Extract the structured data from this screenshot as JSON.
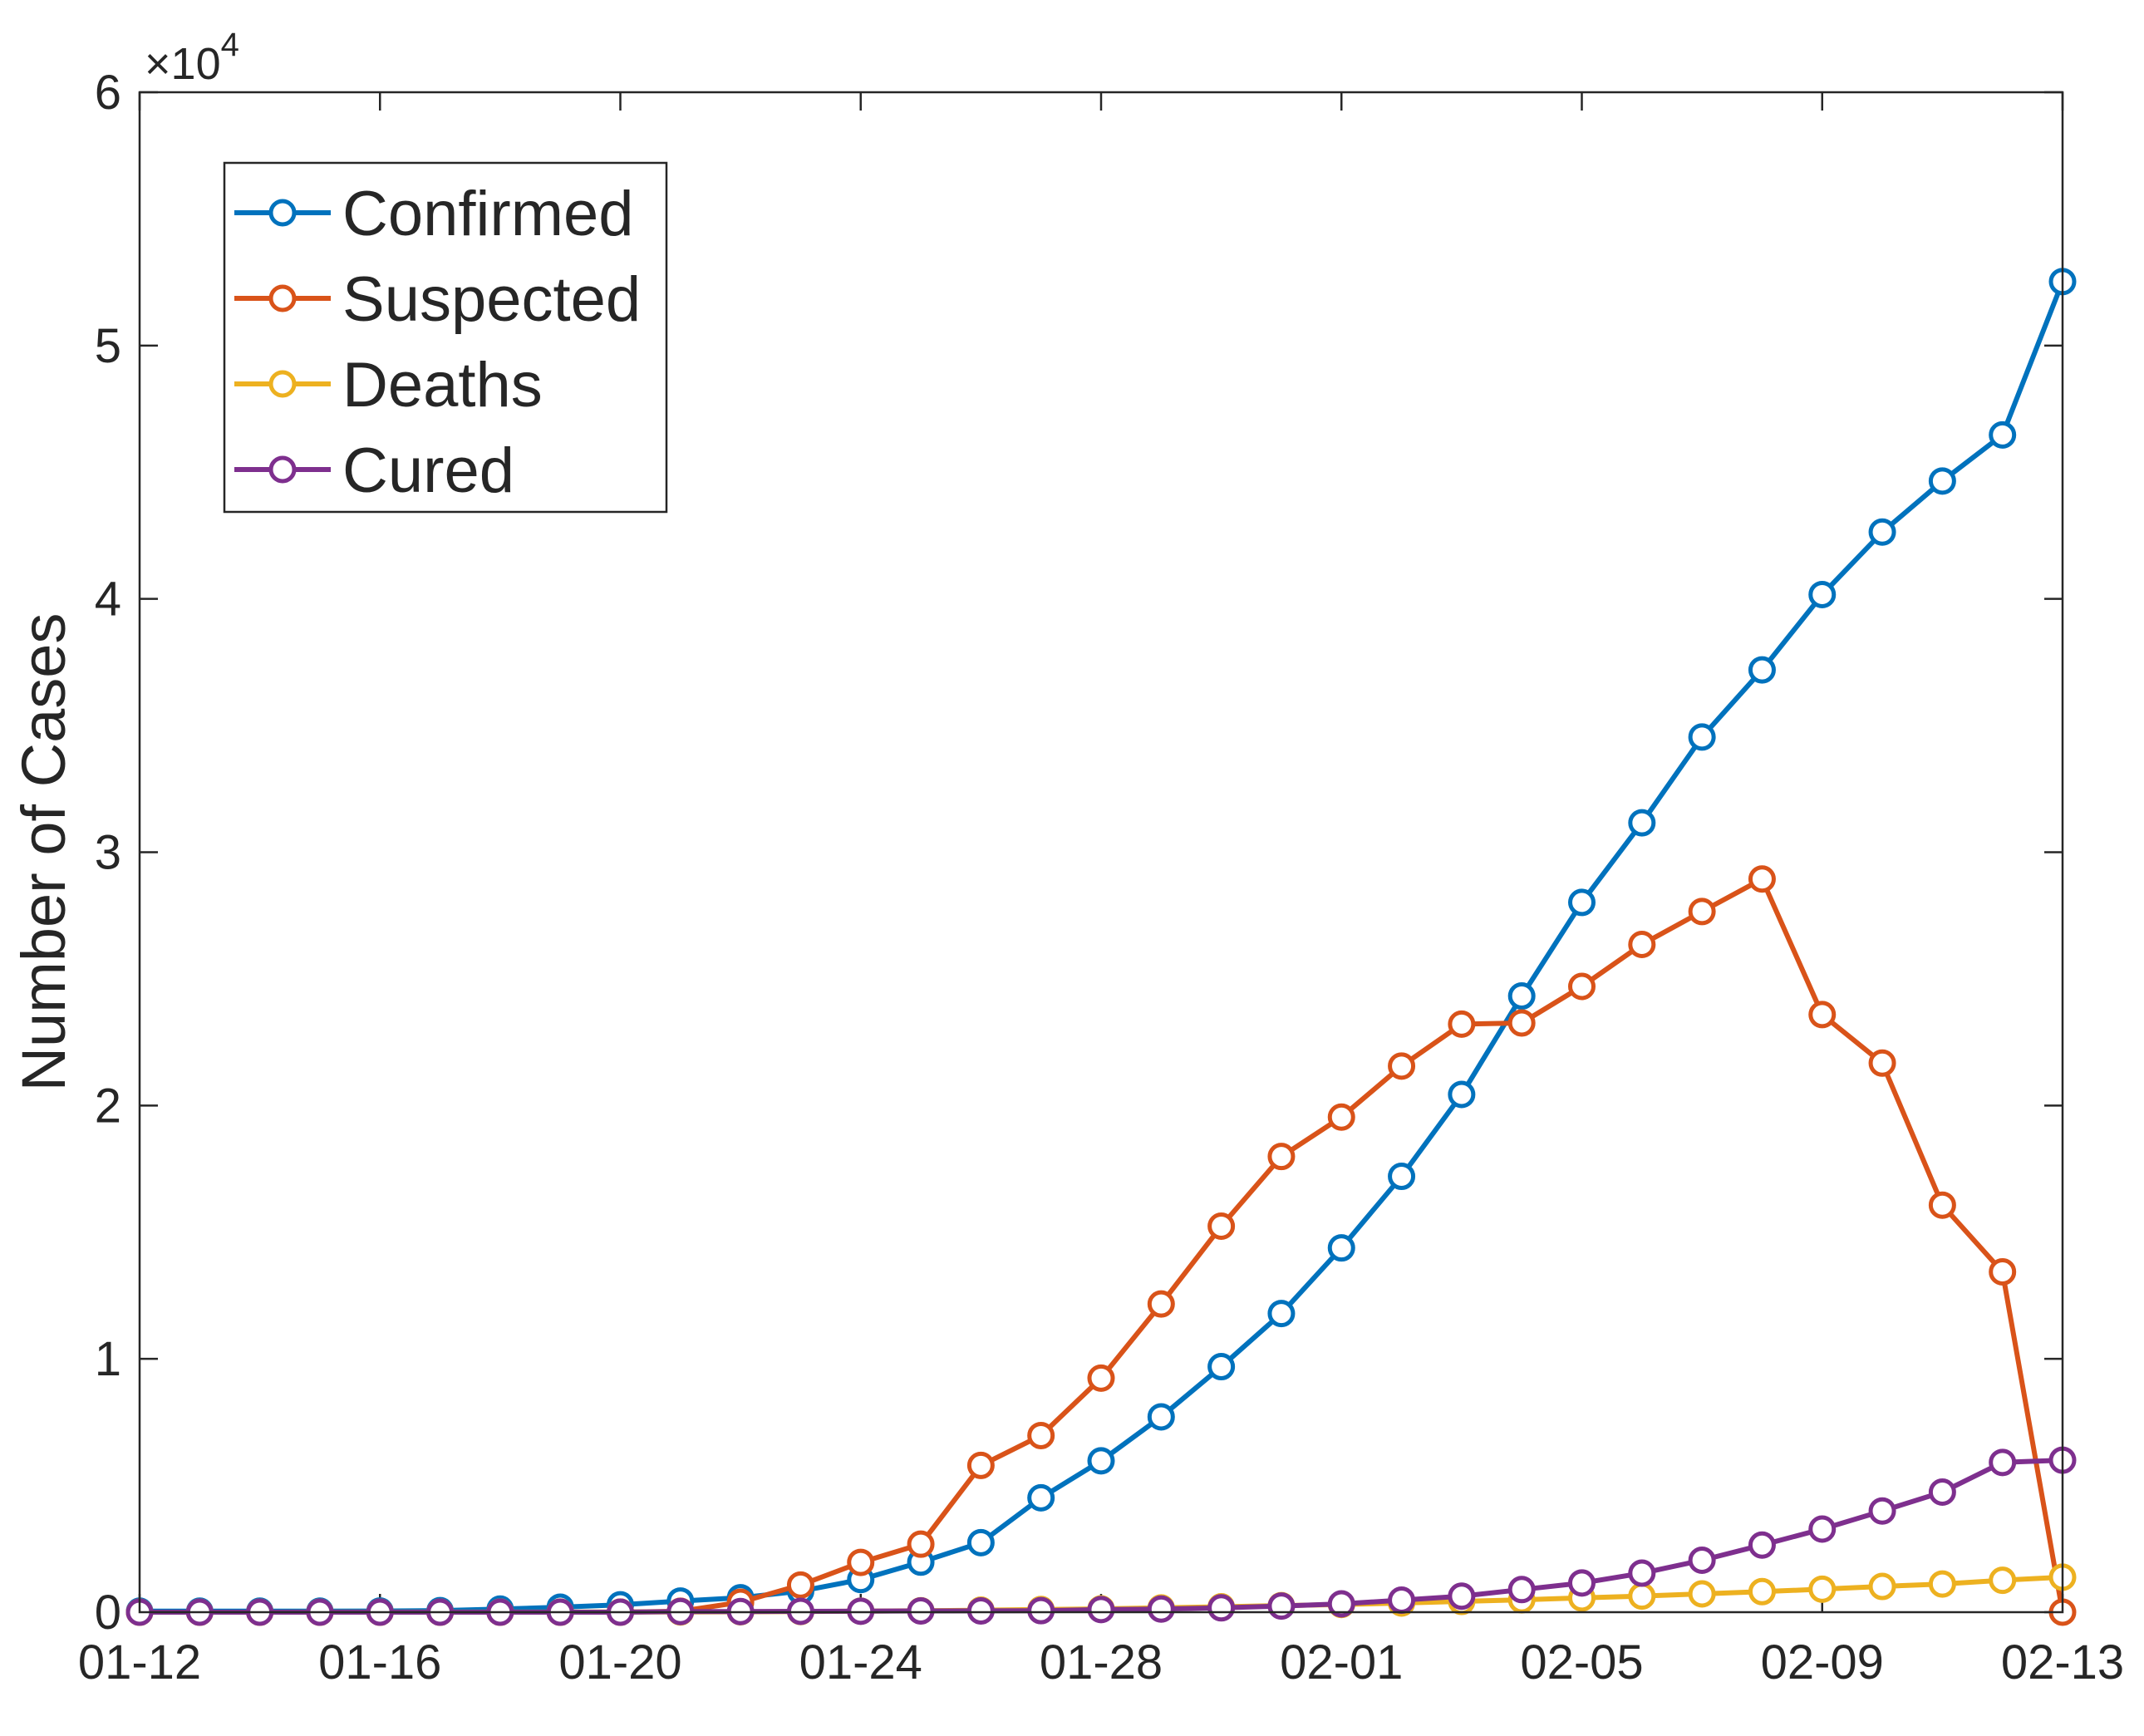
{
  "chart_data": {
    "type": "line",
    "title": "",
    "xlabel": "",
    "ylabel": "Number of Cases",
    "y_exponent_label": {
      "base": "×10",
      "power": "4"
    },
    "x": [
      "01-12",
      "01-13",
      "01-14",
      "01-15",
      "01-16",
      "01-17",
      "01-18",
      "01-19",
      "01-20",
      "01-21",
      "01-22",
      "01-23",
      "01-24",
      "01-25",
      "01-26",
      "01-27",
      "01-28",
      "01-29",
      "01-30",
      "01-31",
      "02-01",
      "02-02",
      "02-03",
      "02-04",
      "02-05",
      "02-06",
      "02-07",
      "02-08",
      "02-09",
      "02-10",
      "02-11",
      "02-12",
      "02-13"
    ],
    "xticks": [
      "01-12",
      "01-16",
      "01-20",
      "01-24",
      "01-28",
      "02-01",
      "02-05",
      "02-09",
      "02-13"
    ],
    "yticks": [
      "0",
      "1",
      "2",
      "3",
      "4",
      "5",
      "6"
    ],
    "ylim": [
      0,
      60000
    ],
    "y_tick_step": 10000,
    "grid": false,
    "legend_position": "top-left",
    "series": [
      {
        "name": "Confirmed",
        "color": "#0072BD",
        "values": [
          41,
          41,
          41,
          41,
          45,
          62,
          121,
          198,
          291,
          440,
          571,
          830,
          1287,
          1975,
          2744,
          4515,
          5974,
          7711,
          9692,
          11791,
          14380,
          17205,
          20438,
          24324,
          28018,
          31161,
          34546,
          37198,
          40171,
          42638,
          44653,
          46472,
          52526
        ]
      },
      {
        "name": "Suspected",
        "color": "#D95319",
        "values": [
          0,
          0,
          0,
          0,
          0,
          0,
          0,
          0,
          0,
          37,
          393,
          1072,
          1965,
          2684,
          5794,
          6973,
          9239,
          12167,
          15238,
          17988,
          19544,
          21558,
          23214,
          23260,
          24702,
          26359,
          27657,
          28942,
          23589,
          21675,
          16067,
          13435,
          0
        ]
      },
      {
        "name": "Deaths",
        "color": "#EDB120",
        "values": [
          1,
          1,
          1,
          2,
          2,
          2,
          3,
          3,
          6,
          9,
          17,
          25,
          41,
          56,
          80,
          106,
          132,
          170,
          213,
          259,
          304,
          361,
          425,
          490,
          563,
          636,
          722,
          811,
          908,
          1016,
          1113,
          1259,
          1380
        ]
      },
      {
        "name": "Cured",
        "color": "#7E2F8E",
        "values": [
          0,
          0,
          0,
          0,
          0,
          0,
          0,
          0,
          0,
          25,
          25,
          34,
          38,
          49,
          51,
          60,
          103,
          124,
          171,
          243,
          328,
          475,
          632,
          892,
          1153,
          1540,
          2050,
          2649,
          3281,
          3996,
          4740,
          5911,
          6000
        ]
      }
    ]
  }
}
